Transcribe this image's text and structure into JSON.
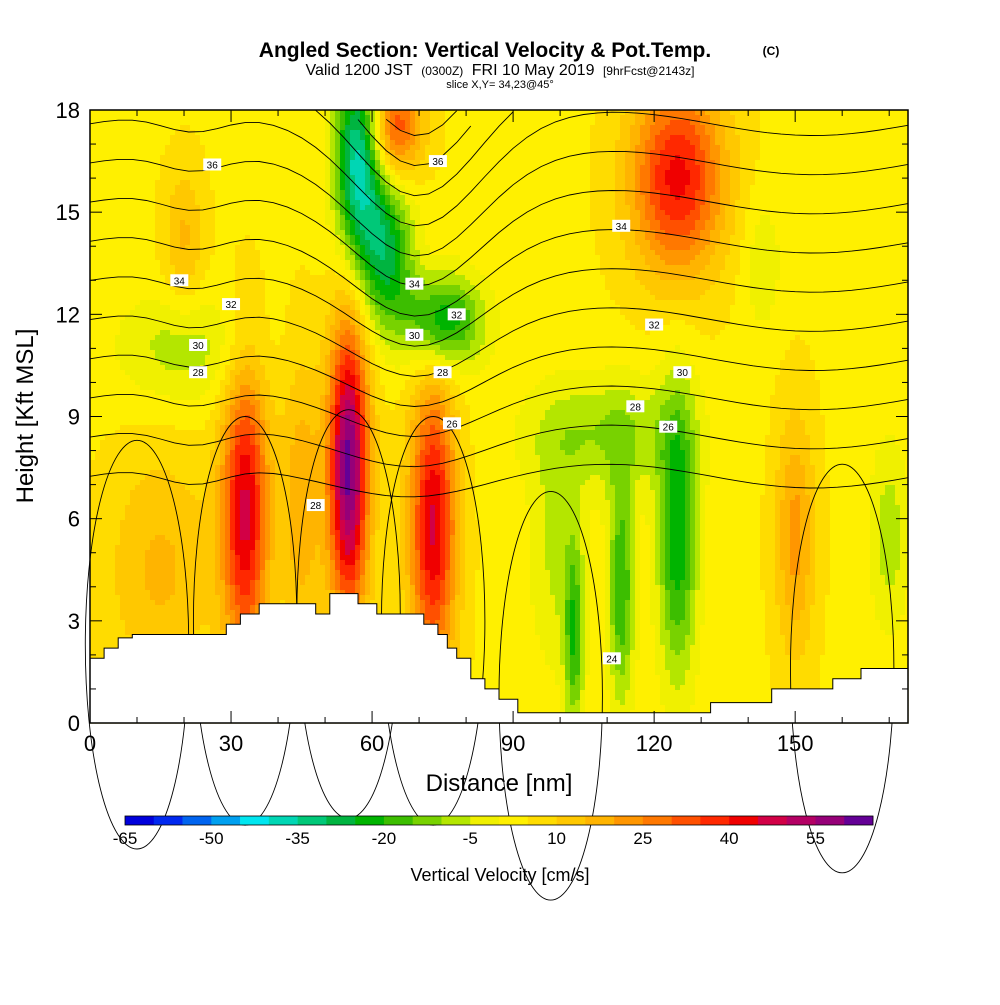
{
  "header": {
    "title_main": "Angled Section: Vertical Velocity & Pot.Temp.",
    "title_copyright": "(C)",
    "valid_prefix": "Valid 1200 JST",
    "valid_utc": "(0300Z)",
    "valid_date": "FRI 10 May 2019",
    "valid_fcst": "[9hrFcst@2143z]",
    "slice": "slice X,Y= 34,23@45°"
  },
  "chart_data": {
    "type": "heatmap",
    "xlabel": "Distance [nm]",
    "ylabel": "Height [Kft MSL]",
    "xlim": [
      0,
      174
    ],
    "ylim": [
      0,
      18
    ],
    "x_ticks": [
      0,
      30,
      60,
      90,
      120,
      150
    ],
    "y_ticks": [
      0,
      3,
      6,
      9,
      12,
      15,
      18
    ],
    "field": "Vertical Velocity",
    "colorbar": {
      "label": "Vertical Velocity [cm/s]",
      "tick_labels": [
        "-65",
        "-50",
        "-35",
        "-20",
        "-5",
        "10",
        "25",
        "40",
        "55"
      ],
      "min": -65,
      "max": 60,
      "step": 5,
      "colors": [
        "#0000dc",
        "#0028f0",
        "#0064f0",
        "#00a0f0",
        "#00e6f0",
        "#00d6b4",
        "#00c878",
        "#00b440",
        "#00b400",
        "#3cbe00",
        "#78d200",
        "#b4e600",
        "#f0f000",
        "#fff000",
        "#ffdc00",
        "#ffc800",
        "#ffb400",
        "#ff9600",
        "#ff7800",
        "#ff5000",
        "#ff2800",
        "#f00000",
        "#d20046",
        "#b40064",
        "#960078",
        "#640096"
      ]
    },
    "terrain_profile": [
      {
        "x": 0,
        "y": 1.9
      },
      {
        "x": 3,
        "y": 1.9
      },
      {
        "x": 3,
        "y": 2.2
      },
      {
        "x": 6,
        "y": 2.2
      },
      {
        "x": 6,
        "y": 2.5
      },
      {
        "x": 9,
        "y": 2.5
      },
      {
        "x": 9,
        "y": 2.6
      },
      {
        "x": 29,
        "y": 2.6
      },
      {
        "x": 29,
        "y": 2.9
      },
      {
        "x": 32,
        "y": 2.9
      },
      {
        "x": 32,
        "y": 3.2
      },
      {
        "x": 36,
        "y": 3.2
      },
      {
        "x": 36,
        "y": 3.5
      },
      {
        "x": 48,
        "y": 3.5
      },
      {
        "x": 48,
        "y": 3.2
      },
      {
        "x": 51,
        "y": 3.2
      },
      {
        "x": 51,
        "y": 3.8
      },
      {
        "x": 57,
        "y": 3.8
      },
      {
        "x": 57,
        "y": 3.5
      },
      {
        "x": 61,
        "y": 3.5
      },
      {
        "x": 61,
        "y": 3.2
      },
      {
        "x": 71,
        "y": 3.2
      },
      {
        "x": 71,
        "y": 2.9
      },
      {
        "x": 74,
        "y": 2.9
      },
      {
        "x": 74,
        "y": 2.6
      },
      {
        "x": 76,
        "y": 2.6
      },
      {
        "x": 76,
        "y": 2.2
      },
      {
        "x": 78,
        "y": 2.2
      },
      {
        "x": 78,
        "y": 1.9
      },
      {
        "x": 81,
        "y": 1.9
      },
      {
        "x": 81,
        "y": 1.3
      },
      {
        "x": 84,
        "y": 1.3
      },
      {
        "x": 84,
        "y": 1.0
      },
      {
        "x": 87,
        "y": 1.0
      },
      {
        "x": 87,
        "y": 0.7
      },
      {
        "x": 91,
        "y": 0.7
      },
      {
        "x": 91,
        "y": 0.3
      },
      {
        "x": 132,
        "y": 0.3
      },
      {
        "x": 132,
        "y": 0.6
      },
      {
        "x": 145,
        "y": 0.6
      },
      {
        "x": 145,
        "y": 1.0
      },
      {
        "x": 158,
        "y": 1.0
      },
      {
        "x": 158,
        "y": 1.3
      },
      {
        "x": 164,
        "y": 1.3
      },
      {
        "x": 164,
        "y": 1.6
      },
      {
        "x": 174,
        "y": 1.6
      }
    ],
    "velocity_features": [
      {
        "x": 33,
        "y": 6.2,
        "sx": 3.5,
        "sy": 3.0,
        "value": 42
      },
      {
        "x": 55,
        "y": 7.5,
        "sx": 3.0,
        "sy": 3.0,
        "value": 58
      },
      {
        "x": 73,
        "y": 5.8,
        "sx": 3.5,
        "sy": 3.0,
        "value": 42
      },
      {
        "x": 45,
        "y": 6.5,
        "sx": 3.0,
        "sy": 3.0,
        "value": 15
      },
      {
        "x": 125,
        "y": 16.0,
        "sx": 7.0,
        "sy": 2.0,
        "value": 38
      },
      {
        "x": 65,
        "y": 17.5,
        "sx": 4.0,
        "sy": 1.0,
        "value": 30
      },
      {
        "x": 20,
        "y": 14.2,
        "sx": 3.0,
        "sy": 1.5,
        "value": 12
      },
      {
        "x": 150,
        "y": 5.5,
        "sx": 3.0,
        "sy": 2.5,
        "value": 18
      },
      {
        "x": 15,
        "y": 4.5,
        "sx": 8.0,
        "sy": 2.5,
        "value": 12
      },
      {
        "x": 57,
        "y": 16.5,
        "sx": 3.5,
        "sy": 2.0,
        "value": -42
      },
      {
        "x": 63,
        "y": 13.8,
        "sx": 4.0,
        "sy": 1.5,
        "value": -30
      },
      {
        "x": 75,
        "y": 11.8,
        "sx": 6.0,
        "sy": 1.0,
        "value": -30
      },
      {
        "x": 20,
        "y": 11.0,
        "sx": 10.0,
        "sy": 1.2,
        "value": -12
      },
      {
        "x": 125,
        "y": 5.5,
        "sx": 3.0,
        "sy": 3.0,
        "value": -28
      },
      {
        "x": 113,
        "y": 4.0,
        "sx": 2.0,
        "sy": 2.5,
        "value": -24
      },
      {
        "x": 103,
        "y": 2.5,
        "sx": 1.5,
        "sy": 2.0,
        "value": -22
      },
      {
        "x": 99,
        "y": 5.0,
        "sx": 4.0,
        "sy": 2.5,
        "value": -10
      },
      {
        "x": 110,
        "y": 8.5,
        "sx": 12.0,
        "sy": 1.2,
        "value": -14
      },
      {
        "x": 170,
        "y": 5.5,
        "sx": 3.0,
        "sy": 2.0,
        "value": -12
      },
      {
        "x": 143,
        "y": 13.5,
        "sx": 3.0,
        "sy": 1.5,
        "value": -8
      }
    ],
    "contour_interval": 1,
    "contour_labels": [
      {
        "x": 26,
        "y": 16.4,
        "text": "36"
      },
      {
        "x": 74,
        "y": 16.5,
        "text": "36"
      },
      {
        "x": 113,
        "y": 14.6,
        "text": "34"
      },
      {
        "x": 19,
        "y": 13.0,
        "text": "34"
      },
      {
        "x": 69,
        "y": 12.9,
        "text": "34"
      },
      {
        "x": 30,
        "y": 12.3,
        "text": "32"
      },
      {
        "x": 78,
        "y": 12.0,
        "text": "32"
      },
      {
        "x": 120,
        "y": 11.7,
        "text": "32"
      },
      {
        "x": 23,
        "y": 11.1,
        "text": "30"
      },
      {
        "x": 69,
        "y": 11.4,
        "text": "30"
      },
      {
        "x": 126,
        "y": 10.3,
        "text": "30"
      },
      {
        "x": 23,
        "y": 10.3,
        "text": "28"
      },
      {
        "x": 75,
        "y": 10.3,
        "text": "28"
      },
      {
        "x": 116,
        "y": 9.3,
        "text": "28"
      },
      {
        "x": 77,
        "y": 8.8,
        "text": "26"
      },
      {
        "x": 123,
        "y": 8.7,
        "text": "26"
      },
      {
        "x": 48,
        "y": 6.4,
        "text": "28"
      },
      {
        "x": 111,
        "y": 1.9,
        "text": "24"
      }
    ]
  }
}
